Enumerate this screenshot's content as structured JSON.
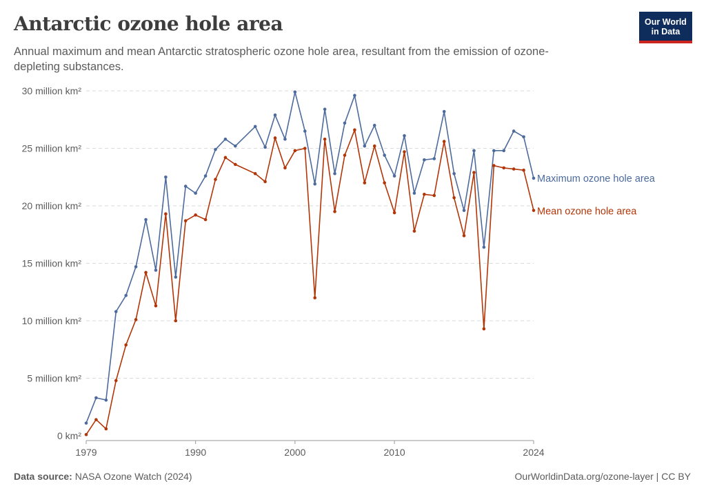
{
  "title": "Antarctic ozone hole area",
  "subtitle": "Annual maximum and mean Antarctic stratospheric ozone hole area, resultant from the emission of ozone-depleting substances.",
  "logo": {
    "line1": "Our World",
    "line2": "in Data"
  },
  "footer": {
    "source_label": "Data source:",
    "source": "NASA Ozone Watch (2024)",
    "right": "OurWorldinData.org/ozone-layer | CC BY"
  },
  "chart_data": {
    "type": "line",
    "title": "Antarctic ozone hole area",
    "ylim": [
      0,
      30
    ],
    "xlim": [
      1979,
      2024
    ],
    "grid": "horizontal dashed",
    "legend": "inline-right",
    "y_ticks": [
      {
        "value": 0,
        "label": "0 km²"
      },
      {
        "value": 5,
        "label": "5 million km²"
      },
      {
        "value": 10,
        "label": "10 million km²"
      },
      {
        "value": 15,
        "label": "15 million km²"
      },
      {
        "value": 20,
        "label": "20 million km²"
      },
      {
        "value": 25,
        "label": "25 million km²"
      },
      {
        "value": 30,
        "label": "30 million km²"
      }
    ],
    "x_ticks": [
      {
        "value": 1979,
        "label": "1979"
      },
      {
        "value": 1990,
        "label": "1990"
      },
      {
        "value": 2000,
        "label": "2000"
      },
      {
        "value": 2010,
        "label": "2010"
      },
      {
        "value": 2024,
        "label": "2024"
      }
    ],
    "x": [
      1979,
      1980,
      1981,
      1982,
      1983,
      1984,
      1985,
      1986,
      1987,
      1988,
      1989,
      1990,
      1991,
      1992,
      1993,
      1994,
      1996,
      1997,
      1998,
      1999,
      2000,
      2001,
      2002,
      2003,
      2004,
      2005,
      2006,
      2007,
      2008,
      2009,
      2010,
      2011,
      2012,
      2013,
      2014,
      2015,
      2016,
      2017,
      2018,
      2019,
      2020,
      2021,
      2022,
      2023,
      2024
    ],
    "series": [
      {
        "name": "Maximum ozone hole area",
        "color": "#4c6a9c",
        "values": [
          1.1,
          3.3,
          3.1,
          10.8,
          12.2,
          14.7,
          18.8,
          14.4,
          22.5,
          13.8,
          21.7,
          21.1,
          22.6,
          24.9,
          25.8,
          25.2,
          26.9,
          25.1,
          27.9,
          25.8,
          29.9,
          26.5,
          21.9,
          28.4,
          22.8,
          27.2,
          29.6,
          25.2,
          27.0,
          24.4,
          22.6,
          26.1,
          21.1,
          24.0,
          24.1,
          28.2,
          22.8,
          19.6,
          24.8,
          16.4,
          24.8,
          24.8,
          26.5,
          26.0,
          22.4
        ]
      },
      {
        "name": "Mean ozone hole area",
        "color": "#b13507",
        "values": [
          0.1,
          1.4,
          0.6,
          4.8,
          7.9,
          10.1,
          14.2,
          11.3,
          19.3,
          10.0,
          18.7,
          19.2,
          18.8,
          22.3,
          24.2,
          23.6,
          22.8,
          22.1,
          25.9,
          23.3,
          24.8,
          25.0,
          12.0,
          25.8,
          19.5,
          24.4,
          26.6,
          22.0,
          25.2,
          22.0,
          19.4,
          24.7,
          17.8,
          21.0,
          20.9,
          25.6,
          20.7,
          17.4,
          22.9,
          9.3,
          23.5,
          23.3,
          23.2,
          23.1,
          19.6
        ]
      }
    ]
  }
}
